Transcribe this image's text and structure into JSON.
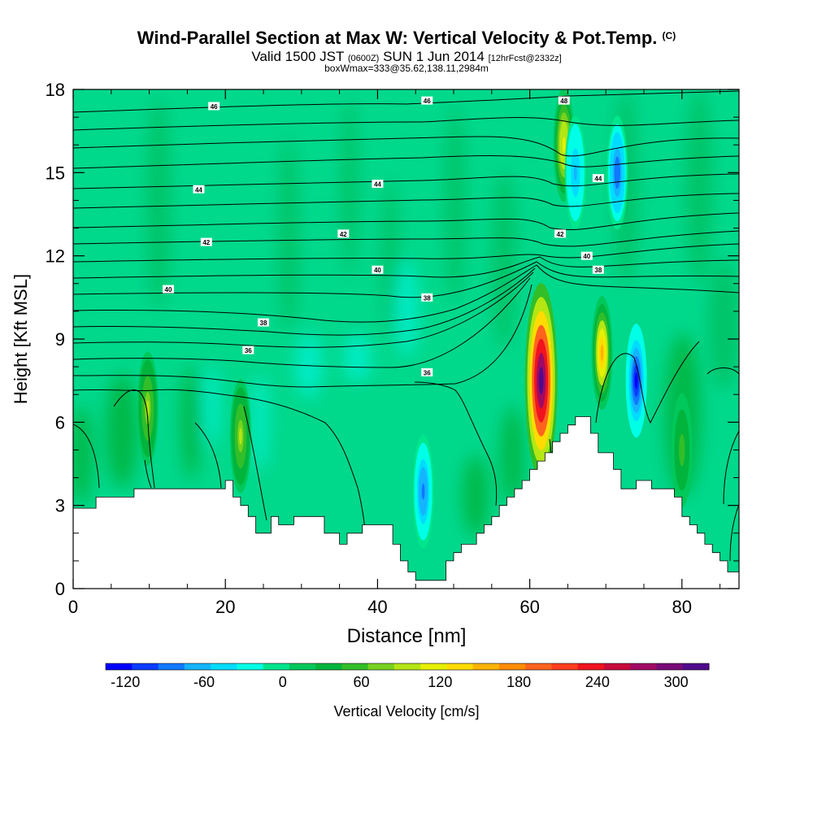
{
  "header": {
    "title": "Wind-Parallel Section at Max W: Vertical Velocity & Pot.Temp.",
    "copyright": "(C)",
    "valid_prefix": "Valid 1500 JST",
    "valid_utc": "(0600Z)",
    "valid_date": "SUN 1 Jun 2014",
    "forecast": "[12hrFcst@2332z]",
    "boxinfo": "boxWmax=333@35.62,138.11,2984m"
  },
  "chart_data": {
    "type": "heatmap",
    "title": "Wind-Parallel Section at Max W: Vertical Velocity & Pot.Temp.",
    "xlabel": "Distance [nm]",
    "ylabel": "Height [Kft MSL]",
    "colorbar_label": "Vertical Velocity [cm/s]",
    "xlim": [
      0,
      87.5
    ],
    "ylim": [
      0,
      18
    ],
    "x_ticks": [
      0,
      20,
      40,
      60,
      80
    ],
    "y_ticks": [
      0,
      3,
      6,
      9,
      12,
      15,
      18
    ],
    "colorbar_ticks": [
      -120,
      -60,
      0,
      60,
      120,
      180,
      240,
      300
    ],
    "colorbar_range": [
      -135,
      325
    ],
    "colorbar_colors": [
      "#0000ff",
      "#0a3cff",
      "#0f78ff",
      "#14b4ff",
      "#00dcff",
      "#00ffe6",
      "#00e68c",
      "#00c85a",
      "#00b43c",
      "#32be28",
      "#78d21e",
      "#b4e614",
      "#e6f000",
      "#ffdc00",
      "#ffb400",
      "#ff8c00",
      "#ff641e",
      "#ff3c1e",
      "#f0141e",
      "#c80a3c",
      "#a00a64",
      "#780a78",
      "#500a8c"
    ],
    "terrain_profile": {
      "x": [
        0,
        3,
        3,
        8,
        8,
        13,
        13,
        20,
        20,
        21,
        21,
        22,
        22,
        23,
        23,
        24,
        24,
        26,
        26,
        27,
        27,
        29,
        29,
        33,
        33,
        34,
        34,
        35,
        35,
        36,
        36,
        38,
        38,
        42,
        42,
        43,
        43,
        44,
        44,
        45,
        45,
        46,
        46,
        49,
        49,
        50,
        50,
        51,
        51,
        52,
        52,
        53,
        53,
        54,
        54,
        55,
        55,
        56,
        56,
        57,
        57,
        58,
        58,
        59,
        59,
        60,
        60,
        61,
        61,
        62,
        62,
        63,
        63,
        64,
        64,
        65,
        65,
        66,
        66,
        67,
        67,
        68,
        68,
        69,
        69,
        71,
        71,
        72,
        72,
        73,
        73,
        74,
        74,
        76,
        76,
        79,
        79,
        80,
        80,
        81,
        81,
        82,
        82,
        83,
        83,
        84,
        84,
        85,
        85,
        86,
        86,
        87.5
      ],
      "height_kft": [
        2.9,
        2.9,
        3.3,
        3.3,
        3.6,
        3.6,
        3.6,
        3.6,
        3.9,
        3.9,
        3.3,
        3.3,
        3.0,
        3.0,
        2.6,
        2.6,
        2.0,
        2.0,
        2.6,
        2.6,
        2.3,
        2.3,
        2.6,
        2.6,
        2.0,
        2.0,
        2.0,
        2.0,
        1.6,
        1.6,
        2.0,
        2.0,
        2.3,
        2.3,
        1.6,
        1.6,
        1.0,
        1.0,
        0.6,
        0.6,
        0.3,
        0.3,
        0.3,
        0.3,
        1.0,
        1.0,
        1.3,
        1.3,
        1.6,
        1.6,
        1.6,
        1.6,
        2.0,
        2.0,
        2.3,
        2.3,
        2.6,
        2.6,
        3.0,
        3.0,
        3.3,
        3.3,
        3.6,
        3.6,
        3.9,
        3.9,
        4.3,
        4.3,
        4.6,
        4.6,
        4.9,
        4.9,
        5.3,
        5.3,
        5.6,
        5.6,
        5.9,
        5.9,
        6.2,
        6.2,
        6.2,
        6.2,
        5.6,
        5.6,
        4.9,
        4.9,
        4.3,
        4.3,
        3.6,
        3.6,
        3.6,
        3.6,
        3.9,
        3.9,
        3.6,
        3.6,
        3.3,
        3.3,
        2.6,
        2.6,
        2.3,
        2.3,
        2.0,
        2.0,
        1.6,
        1.6,
        1.3,
        1.3,
        1.0,
        1.0,
        0.6,
        0.6
      ]
    },
    "velocity_cells": [
      {
        "x": 61.5,
        "height_kft": 7.5,
        "value": 330
      },
      {
        "x": 69.5,
        "height_kft": 8.5,
        "value": 150
      },
      {
        "x": 74.0,
        "height_kft": 7.5,
        "value": -120
      },
      {
        "x": 9.8,
        "height_kft": 6.5,
        "value": 90
      },
      {
        "x": 22.0,
        "height_kft": 5.5,
        "value": 90
      },
      {
        "x": 46.0,
        "height_kft": 3.5,
        "value": -80
      },
      {
        "x": 64.5,
        "height_kft": 16.0,
        "value": 120
      },
      {
        "x": 66.0,
        "height_kft": 15.0,
        "value": -60
      },
      {
        "x": 71.5,
        "height_kft": 15.0,
        "value": -90
      },
      {
        "x": 80.0,
        "height_kft": 5.0,
        "value": 60
      }
    ],
    "isentrope_labels": [
      {
        "label": "46",
        "x": 18.5,
        "height_kft": 17.4
      },
      {
        "label": "46",
        "x": 46.5,
        "height_kft": 17.6
      },
      {
        "label": "48",
        "x": 64.5,
        "height_kft": 17.6
      },
      {
        "label": "44",
        "x": 16.5,
        "height_kft": 14.4
      },
      {
        "label": "44",
        "x": 40.0,
        "height_kft": 14.6
      },
      {
        "label": "44",
        "x": 69.0,
        "height_kft": 14.8
      },
      {
        "label": "42",
        "x": 17.5,
        "height_kft": 12.5
      },
      {
        "label": "42",
        "x": 35.5,
        "height_kft": 12.8
      },
      {
        "label": "42",
        "x": 64.0,
        "height_kft": 12.8
      },
      {
        "label": "40",
        "x": 12.5,
        "height_kft": 10.8
      },
      {
        "label": "40",
        "x": 40.0,
        "height_kft": 11.5
      },
      {
        "label": "40",
        "x": 67.5,
        "height_kft": 12.0
      },
      {
        "label": "38",
        "x": 25.0,
        "height_kft": 9.6
      },
      {
        "label": "38",
        "x": 46.5,
        "height_kft": 10.5
      },
      {
        "label": "38",
        "x": 69.0,
        "height_kft": 11.5
      },
      {
        "label": "36",
        "x": 23.0,
        "height_kft": 8.6
      },
      {
        "label": "36",
        "x": 46.5,
        "height_kft": 7.8
      }
    ]
  }
}
